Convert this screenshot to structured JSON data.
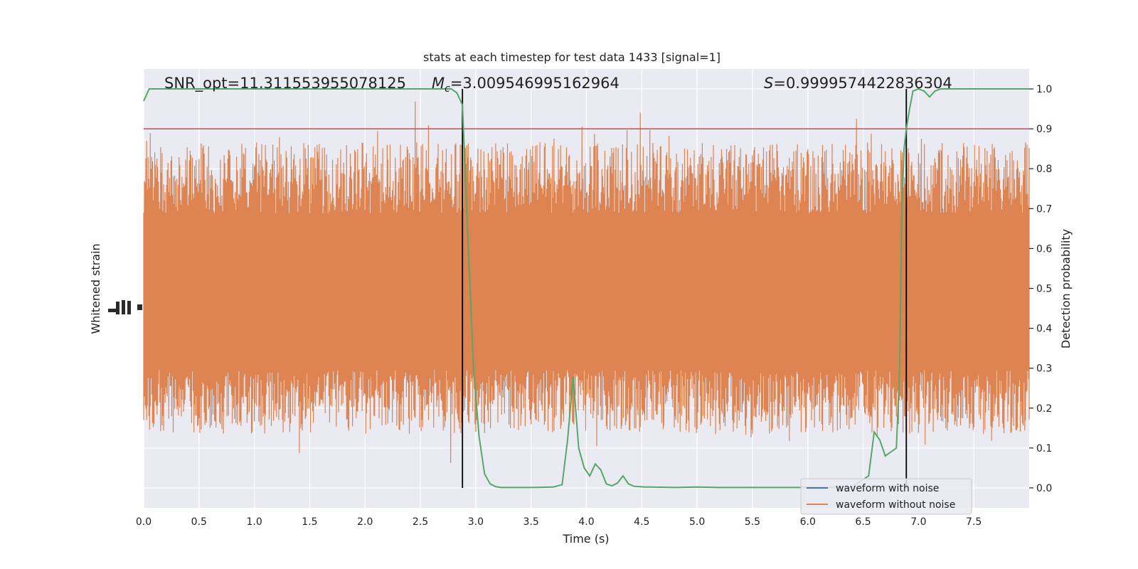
{
  "chart_data": {
    "type": "line",
    "title": "stats at each timestep for test data 1433 [signal=1]",
    "xlabel": "Time (s)",
    "ylabel_left": "Whitened strain",
    "ylabel_right": "Detection probability",
    "xlim": [
      0.0,
      8.0
    ],
    "ylim_right": [
      -0.05,
      1.05
    ],
    "x_ticks": [
      0.0,
      0.5,
      1.0,
      1.5,
      2.0,
      2.5,
      3.0,
      3.5,
      4.0,
      4.5,
      5.0,
      5.5,
      6.0,
      6.5,
      7.0,
      7.5
    ],
    "x_tick_labels": [
      "0.0",
      "0.5",
      "1.0",
      "1.5",
      "2.0",
      "2.5",
      "3.0",
      "3.5",
      "4.0",
      "4.5",
      "5.0",
      "5.5",
      "6.0",
      "6.5",
      "7.0",
      "7.5"
    ],
    "y_ticks_right": [
      0.0,
      0.1,
      0.2,
      0.3,
      0.4,
      0.5,
      0.6,
      0.7,
      0.8,
      0.9,
      1.0
    ],
    "y_tick_labels_right": [
      "0.0",
      "0.1",
      "0.2",
      "0.3",
      "0.4",
      "0.5",
      "0.6",
      "0.7",
      "0.8",
      "0.9",
      "1.0"
    ],
    "grid": true,
    "annotations": {
      "snr": "SNR_opt=11.311553955078125",
      "mc_symbol": "M",
      "mc_subscript": "c",
      "mc_value": "=3.009546995162964",
      "s_symbol": "S",
      "s_value": "=0.9999574422836304"
    },
    "threshold": 0.9,
    "vertical_lines_x": [
      2.88,
      6.89
    ],
    "detection_probability": {
      "x": [
        0.0,
        0.05,
        0.1,
        0.2,
        0.5,
        1.0,
        1.5,
        2.0,
        2.5,
        2.7,
        2.78,
        2.83,
        2.88,
        2.93,
        2.98,
        3.03,
        3.08,
        3.13,
        3.18,
        3.23,
        3.3,
        3.5,
        3.7,
        3.78,
        3.83,
        3.88,
        3.93,
        3.98,
        4.03,
        4.08,
        4.13,
        4.18,
        4.23,
        4.28,
        4.33,
        4.38,
        4.43,
        4.48,
        4.53,
        4.58,
        4.8,
        5.0,
        5.2,
        5.5,
        6.0,
        6.4,
        6.55,
        6.6,
        6.65,
        6.7,
        6.75,
        6.8,
        6.83,
        6.85,
        6.87,
        6.89,
        6.92,
        6.95,
        7.0,
        7.05,
        7.1,
        7.15,
        7.2,
        7.3,
        7.5,
        8.0
      ],
      "values": [
        0.97,
        1.0,
        1.0,
        1.0,
        1.0,
        1.0,
        1.0,
        1.0,
        1.0,
        1.0,
        1.0,
        0.99,
        0.96,
        0.62,
        0.3,
        0.13,
        0.035,
        0.01,
        0.003,
        0.001,
        0.001,
        0.001,
        0.002,
        0.008,
        0.12,
        0.28,
        0.1,
        0.05,
        0.03,
        0.06,
        0.045,
        0.01,
        0.005,
        0.012,
        0.03,
        0.01,
        0.004,
        0.003,
        0.002,
        0.002,
        0.001,
        0.002,
        0.001,
        0.001,
        0.001,
        0.002,
        0.03,
        0.14,
        0.12,
        0.08,
        0.09,
        0.1,
        0.3,
        0.7,
        0.85,
        0.9,
        0.95,
        0.995,
        1.0,
        0.995,
        0.98,
        0.995,
        1.0,
        1.0,
        1.0,
        1.0
      ]
    },
    "series": [
      {
        "name": "waveform with noise",
        "color": "#4c72b0"
      },
      {
        "name": "waveform without noise",
        "color": "#dd8452"
      }
    ],
    "colors": {
      "axes_background": "#eaeaf2",
      "grid": "#ffffff",
      "probability_line": "#55a868",
      "threshold_line": "#c44e52",
      "vertical_line": "#000000",
      "strain_fill": "#dd8452"
    },
    "legend_position": "lower-right"
  }
}
